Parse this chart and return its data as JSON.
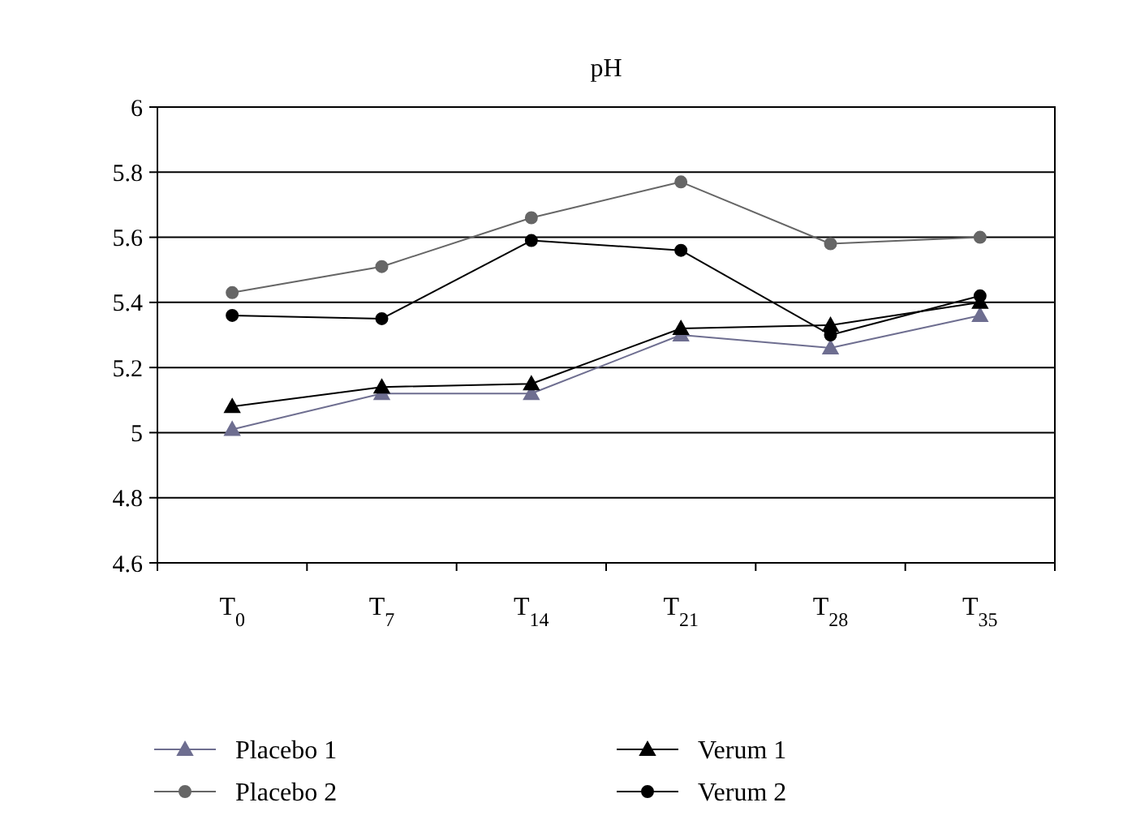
{
  "chart_data": {
    "type": "line",
    "title": "pH",
    "categories": [
      "T$_{0}$",
      "T$_{7}$",
      "T$_{14}$",
      "T$_{21}$",
      "T$_{28}$",
      "T$_{35}$"
    ],
    "ylim": [
      4.6,
      6
    ],
    "yticks": [
      4.6,
      4.8,
      5,
      5.2,
      5.4,
      5.6,
      5.8,
      6
    ],
    "grid": "y",
    "legend": "bottom",
    "line_style": "solid",
    "series": [
      {
        "name": "Placebo 1",
        "color": "#6e6e90",
        "marker": "triangle",
        "values": [
          5.01,
          5.12,
          5.12,
          5.3,
          5.26,
          5.36
        ]
      },
      {
        "name": "Placebo 2",
        "color": "#666666",
        "marker": "circle",
        "values": [
          5.43,
          5.51,
          5.66,
          5.77,
          5.58,
          5.6
        ]
      },
      {
        "name": "Verum 1",
        "color": "#000000",
        "marker": "triangle",
        "values": [
          5.08,
          5.14,
          5.15,
          5.32,
          5.33,
          5.4
        ]
      },
      {
        "name": "Verum 2",
        "color": "#000000",
        "marker": "circle",
        "values": [
          5.36,
          5.35,
          5.59,
          5.56,
          5.3,
          5.42
        ]
      }
    ]
  }
}
